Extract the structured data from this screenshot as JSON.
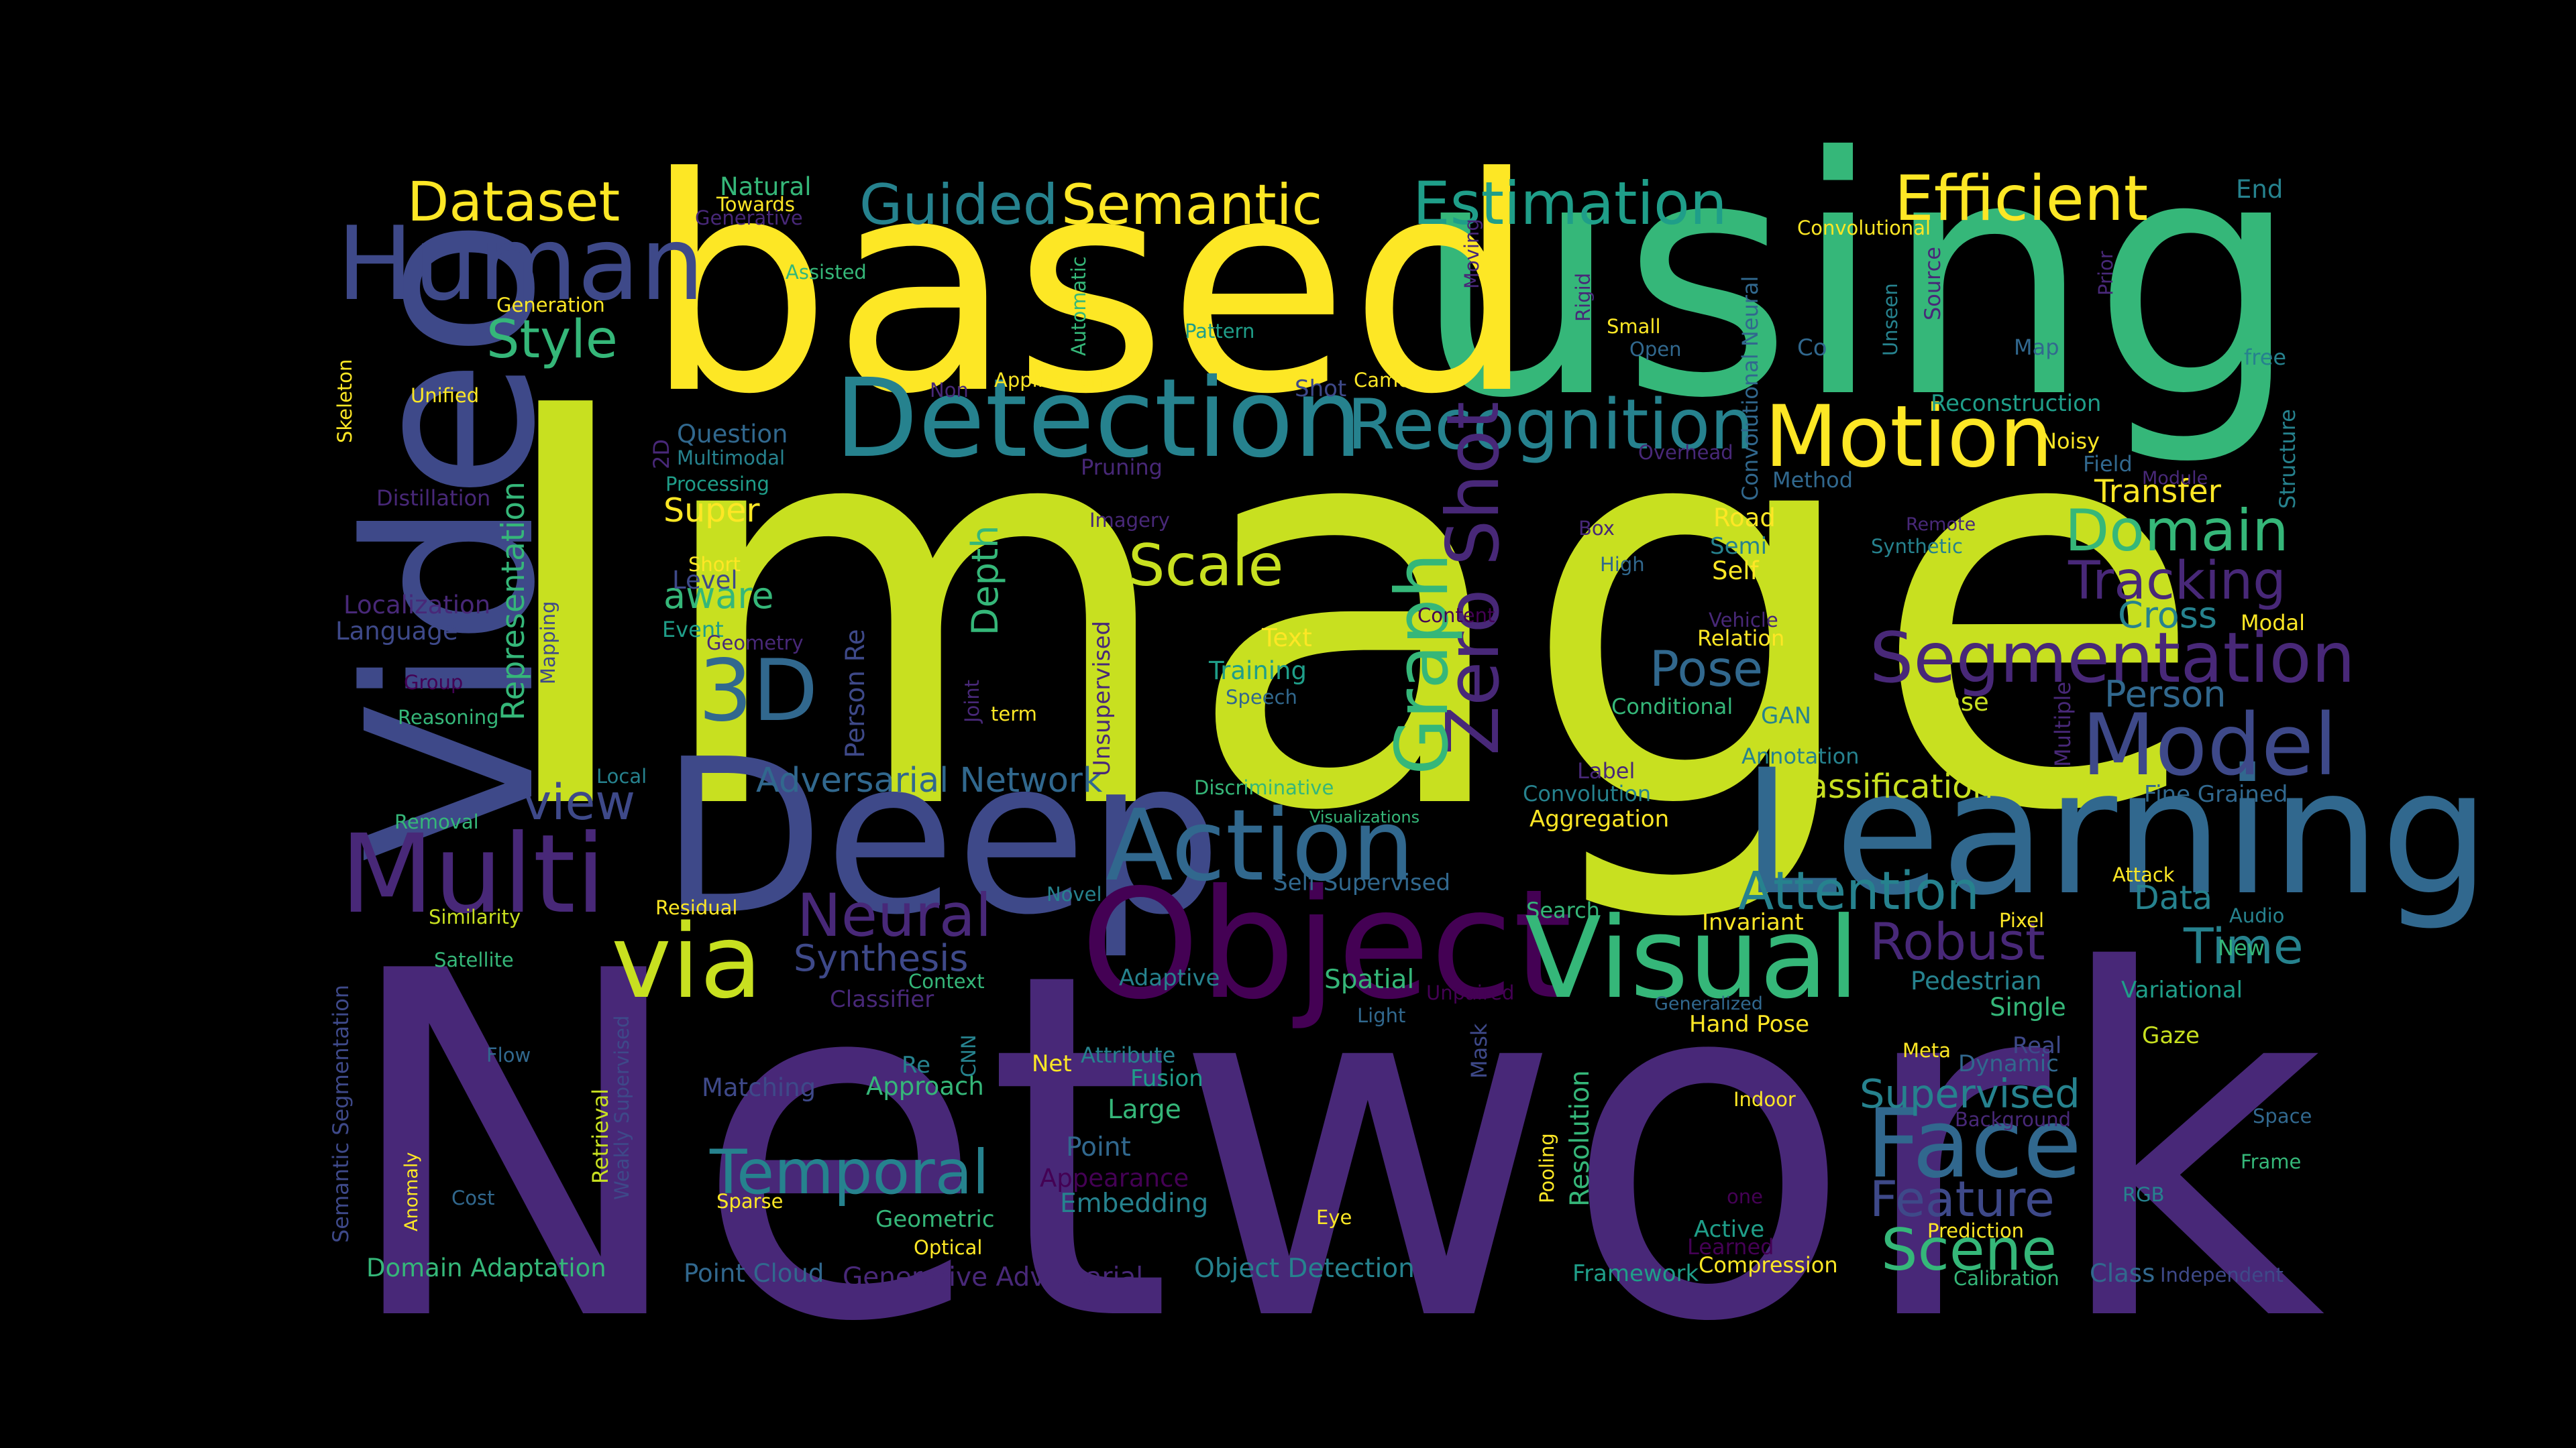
{
  "background_color": "#000000",
  "palette": {
    "dark_purple": "#440154",
    "indigo": "#482878",
    "slate_blue": "#3e4989",
    "steel_blue": "#31688e",
    "teal_blue": "#26828e",
    "teal": "#1f9e89",
    "green": "#35b779",
    "yellow_green": "#c8e020",
    "yellow": "#fde725"
  },
  "words": [
    {
      "text": "Network",
      "color": "#482878",
      "vertical": false
    },
    {
      "text": "Image",
      "color": "#c8e020",
      "vertical": false
    },
    {
      "text": "using",
      "color": "#35b779",
      "vertical": false
    },
    {
      "text": "based",
      "color": "#fde725",
      "vertical": false
    },
    {
      "text": "Deep",
      "color": "#3e4989",
      "vertical": false
    },
    {
      "text": "Video",
      "color": "#3e4989",
      "vertical": true
    },
    {
      "text": "Learning",
      "color": "#31688e",
      "vertical": false
    },
    {
      "text": "Object",
      "color": "#440154",
      "vertical": false
    },
    {
      "text": "Detection",
      "color": "#26828e",
      "vertical": false
    },
    {
      "text": "Visual",
      "color": "#35b779",
      "vertical": false
    },
    {
      "text": "Action",
      "color": "#31688e",
      "vertical": false
    },
    {
      "text": "Multi",
      "color": "#482878",
      "vertical": false
    },
    {
      "text": "Face",
      "color": "#31688e",
      "vertical": false
    },
    {
      "text": "Human",
      "color": "#3e4989",
      "vertical": false
    },
    {
      "text": "Recognition",
      "color": "#26828e",
      "vertical": false
    },
    {
      "text": "Motion",
      "color": "#fde725",
      "vertical": false
    },
    {
      "text": "via",
      "color": "#c8e020",
      "vertical": false
    },
    {
      "text": "Segmentation",
      "color": "#482878",
      "vertical": false
    },
    {
      "text": "Model",
      "color": "#3e4989",
      "vertical": false
    },
    {
      "text": "Efficient",
      "color": "#fde725",
      "vertical": false
    },
    {
      "text": "Estimation",
      "color": "#1f9e89",
      "vertical": false
    },
    {
      "text": "Semantic",
      "color": "#fde725",
      "vertical": false
    },
    {
      "text": "Guided",
      "color": "#26828e",
      "vertical": false
    },
    {
      "text": "Dataset",
      "color": "#fde725",
      "vertical": false
    },
    {
      "text": "3D",
      "color": "#31688e",
      "vertical": false
    },
    {
      "text": "Zero Shot",
      "color": "#482878",
      "vertical": true
    },
    {
      "text": "Graph",
      "color": "#35b779",
      "vertical": true
    },
    {
      "text": "Temporal",
      "color": "#26828e",
      "vertical": false
    },
    {
      "text": "Attention",
      "color": "#26828e",
      "vertical": false
    },
    {
      "text": "Domain",
      "color": "#35b779",
      "vertical": false
    },
    {
      "text": "Tracking",
      "color": "#482878",
      "vertical": false
    },
    {
      "text": "Scale",
      "color": "#c8e020",
      "vertical": false
    },
    {
      "text": "Neural",
      "color": "#482878",
      "vertical": false
    },
    {
      "text": "Robust",
      "color": "#482878",
      "vertical": false
    },
    {
      "text": "Time",
      "color": "#26828e",
      "vertical": false
    },
    {
      "text": "Pose",
      "color": "#31688e",
      "vertical": false
    },
    {
      "text": "Scene",
      "color": "#35b779",
      "vertical": false
    },
    {
      "text": "Feature",
      "color": "#3e4989",
      "vertical": false
    },
    {
      "text": "Style",
      "color": "#35b779",
      "vertical": false
    },
    {
      "text": "view",
      "color": "#3e4989",
      "vertical": false
    },
    {
      "text": "Supervised",
      "color": "#26828e",
      "vertical": false
    },
    {
      "text": "Adversarial Network",
      "color": "#31688e",
      "vertical": false
    },
    {
      "text": "Synthesis",
      "color": "#3e4989",
      "vertical": false
    },
    {
      "text": "Representation",
      "color": "#35b779",
      "vertical": true
    },
    {
      "text": "Depth",
      "color": "#35b779",
      "vertical": true
    },
    {
      "text": "Classification",
      "color": "#c8e020",
      "vertical": false
    },
    {
      "text": "Transfer",
      "color": "#fde725",
      "vertical": false
    },
    {
      "text": "Cross",
      "color": "#26828e",
      "vertical": false
    },
    {
      "text": "Person",
      "color": "#31688e",
      "vertical": false
    },
    {
      "text": "Data",
      "color": "#26828e",
      "vertical": false
    },
    {
      "text": "Super",
      "color": "#fde725",
      "vertical": false
    },
    {
      "text": "aware",
      "color": "#35b779",
      "vertical": false
    },
    {
      "text": "Embedding",
      "color": "#26828e",
      "vertical": false
    },
    {
      "text": "Point",
      "color": "#31688e",
      "vertical": false
    },
    {
      "text": "Large",
      "color": "#35b779",
      "vertical": false
    },
    {
      "text": "Approach",
      "color": "#35b779",
      "vertical": false
    },
    {
      "text": "Domain Adaptation",
      "color": "#35b779",
      "vertical": false
    },
    {
      "text": "Object Detection",
      "color": "#26828e",
      "vertical": false
    },
    {
      "text": "Generative Adversarial",
      "color": "#482878",
      "vertical": false
    },
    {
      "text": "Point Cloud",
      "color": "#31688e",
      "vertical": false
    },
    {
      "text": "Resolution",
      "color": "#35b779",
      "vertical": true
    },
    {
      "text": "Text",
      "color": "#fde725",
      "vertical": false
    },
    {
      "text": "Training",
      "color": "#1f9e89",
      "vertical": false
    },
    {
      "text": "Spatial",
      "color": "#35b779",
      "vertical": false
    },
    {
      "text": "Adaptive",
      "color": "#26828e",
      "vertical": false
    },
    {
      "text": "Framework",
      "color": "#1f9e89",
      "vertical": false
    },
    {
      "text": "Compression",
      "color": "#fde725",
      "vertical": false
    },
    {
      "text": "Pedestrian",
      "color": "#26828e",
      "vertical": false
    },
    {
      "text": "Single",
      "color": "#35b779",
      "vertical": false
    },
    {
      "text": "Variational",
      "color": "#1f9e89",
      "vertical": false
    },
    {
      "text": "Gaze",
      "color": "#c8e020",
      "vertical": false
    },
    {
      "text": "Dynamic",
      "color": "#31688e",
      "vertical": false
    },
    {
      "text": "Hand Pose",
      "color": "#fde725",
      "vertical": false
    },
    {
      "text": "Matching",
      "color": "#3e4989",
      "vertical": false
    },
    {
      "text": "Geometric",
      "color": "#35b779",
      "vertical": false
    },
    {
      "text": "Appearance",
      "color": "#440154",
      "vertical": false
    },
    {
      "text": "Localization",
      "color": "#482878",
      "vertical": false
    },
    {
      "text": "Language",
      "color": "#3e4989",
      "vertical": false
    },
    {
      "text": "Question",
      "color": "#31688e",
      "vertical": false
    },
    {
      "text": "Level",
      "color": "#3e4989",
      "vertical": false
    },
    {
      "text": "Event",
      "color": "#1f9e89",
      "vertical": false
    },
    {
      "text": "Reasoning",
      "color": "#35b779",
      "vertical": false
    },
    {
      "text": "Conditional",
      "color": "#35b779",
      "vertical": false
    },
    {
      "text": "GAN",
      "color": "#26828e",
      "vertical": false
    },
    {
      "text": "Dense",
      "color": "#c8e020",
      "vertical": false
    },
    {
      "text": "Road",
      "color": "#fde725",
      "vertical": false
    },
    {
      "text": "Semi",
      "color": "#26828e",
      "vertical": false
    },
    {
      "text": "Self",
      "color": "#fde725",
      "vertical": false
    },
    {
      "text": "Relation",
      "color": "#fde725",
      "vertical": false
    },
    {
      "text": "Aggregation",
      "color": "#fde725",
      "vertical": false
    },
    {
      "text": "Convolution",
      "color": "#26828e",
      "vertical": false
    },
    {
      "text": "Label",
      "color": "#482878",
      "vertical": false
    },
    {
      "text": "Discriminative",
      "color": "#35b779",
      "vertical": false
    },
    {
      "text": "Self Supervised",
      "color": "#31688e",
      "vertical": false
    },
    {
      "text": "Novel",
      "color": "#26828e",
      "vertical": false
    },
    {
      "text": "Search",
      "color": "#35b779",
      "vertical": false
    },
    {
      "text": "Invariant",
      "color": "#fde725",
      "vertical": false
    },
    {
      "text": "Pixel",
      "color": "#fde725",
      "vertical": false
    },
    {
      "text": "Attack",
      "color": "#fde725",
      "vertical": false
    },
    {
      "text": "New",
      "color": "#35b779",
      "vertical": false
    },
    {
      "text": "Audio",
      "color": "#26828e",
      "vertical": false
    },
    {
      "text": "Fine Grained",
      "color": "#31688e",
      "vertical": false
    },
    {
      "text": "Annotation",
      "color": "#26828e",
      "vertical": false
    },
    {
      "text": "Vehicle",
      "color": "#482878",
      "vertical": false
    },
    {
      "text": "Modal",
      "color": "#fde725",
      "vertical": false
    },
    {
      "text": "Multiple",
      "color": "#482878",
      "vertical": true
    },
    {
      "text": "Synthetic",
      "color": "#26828e",
      "vertical": false
    },
    {
      "text": "Remote",
      "color": "#482878",
      "vertical": false
    },
    {
      "text": "Method",
      "color": "#31688e",
      "vertical": false
    },
    {
      "text": "Field",
      "color": "#31688e",
      "vertical": false
    },
    {
      "text": "Module",
      "color": "#482878",
      "vertical": false
    },
    {
      "text": "Noisy",
      "color": "#fde725",
      "vertical": false
    },
    {
      "text": "Reconstruction",
      "color": "#1f9e89",
      "vertical": false
    },
    {
      "text": "Structure",
      "color": "#26828e",
      "vertical": true
    },
    {
      "text": "free",
      "color": "#26828e",
      "vertical": false
    },
    {
      "text": "Map",
      "color": "#31688e",
      "vertical": false
    },
    {
      "text": "Prior",
      "color": "#482878",
      "vertical": true
    },
    {
      "text": "Source",
      "color": "#482878",
      "vertical": true
    },
    {
      "text": "Unseen",
      "color": "#26828e",
      "vertical": true
    },
    {
      "text": "Convolutional Neural",
      "color": "#31688e",
      "vertical": true
    },
    {
      "text": "Convolutional",
      "color": "#fde725",
      "vertical": false
    },
    {
      "text": "End",
      "color": "#26828e",
      "vertical": false
    },
    {
      "text": "Co",
      "color": "#31688e",
      "vertical": false
    },
    {
      "text": "Small",
      "color": "#fde725",
      "vertical": false
    },
    {
      "text": "Open",
      "color": "#31688e",
      "vertical": false
    },
    {
      "text": "Rigid",
      "color": "#482878",
      "vertical": true
    },
    {
      "text": "Moving",
      "color": "#482878",
      "vertical": true
    },
    {
      "text": "Camera",
      "color": "#fde725",
      "vertical": false
    },
    {
      "text": "Overhead",
      "color": "#482878",
      "vertical": false
    },
    {
      "text": "Box",
      "color": "#482878",
      "vertical": false
    },
    {
      "text": "High",
      "color": "#31688e",
      "vertical": false
    },
    {
      "text": "Content",
      "color": "#440154",
      "vertical": false
    },
    {
      "text": "Speech",
      "color": "#31688e",
      "vertical": false
    },
    {
      "text": "Imagery",
      "color": "#482878",
      "vertical": false
    },
    {
      "text": "Pruning",
      "color": "#482878",
      "vertical": false
    },
    {
      "text": "Shot",
      "color": "#3e4989",
      "vertical": false
    },
    {
      "text": "Application",
      "color": "#fde725",
      "vertical": false
    },
    {
      "text": "Pattern",
      "color": "#1f9e89",
      "vertical": false
    },
    {
      "text": "Automatic",
      "color": "#35b779",
      "vertical": true
    },
    {
      "text": "Non",
      "color": "#482878",
      "vertical": false
    },
    {
      "text": "Assisted",
      "color": "#35b779",
      "vertical": false
    },
    {
      "text": "Natural",
      "color": "#35b779",
      "vertical": false
    },
    {
      "text": "Towards",
      "color": "#fde725",
      "vertical": false
    },
    {
      "text": "Generative",
      "color": "#482878",
      "vertical": false
    },
    {
      "text": "Generation",
      "color": "#fde725",
      "vertical": false
    },
    {
      "text": "Unified",
      "color": "#fde725",
      "vertical": false
    },
    {
      "text": "Skeleton",
      "color": "#fde725",
      "vertical": true
    },
    {
      "text": "Distillation",
      "color": "#482878",
      "vertical": false
    },
    {
      "text": "Multimodal",
      "color": "#26828e",
      "vertical": false
    },
    {
      "text": "Processing",
      "color": "#1f9e89",
      "vertical": false
    },
    {
      "text": "2D",
      "color": "#482878",
      "vertical": true
    },
    {
      "text": "Short",
      "color": "#fde725",
      "vertical": false
    },
    {
      "text": "Geometry",
      "color": "#482878",
      "vertical": false
    },
    {
      "text": "Mapping",
      "color": "#3e4989",
      "vertical": true
    },
    {
      "text": "Group",
      "color": "#440154",
      "vertical": false
    },
    {
      "text": "Person Re",
      "color": "#3e4989",
      "vertical": true
    },
    {
      "text": "Joint",
      "color": "#482878",
      "vertical": true
    },
    {
      "text": "term",
      "color": "#fde725",
      "vertical": false
    },
    {
      "text": "Unsupervised",
      "color": "#482878",
      "vertical": true
    },
    {
      "text": "Local",
      "color": "#26828e",
      "vertical": false
    },
    {
      "text": "Removal",
      "color": "#35b779",
      "vertical": false
    },
    {
      "text": "Similarity",
      "color": "#c8e020",
      "vertical": false
    },
    {
      "text": "Residual",
      "color": "#fde725",
      "vertical": false
    },
    {
      "text": "Satellite",
      "color": "#35b779",
      "vertical": false
    },
    {
      "text": "Context",
      "color": "#35b779",
      "vertical": false
    },
    {
      "text": "Classifier",
      "color": "#482878",
      "vertical": false
    },
    {
      "text": "Semantic Segmentation",
      "color": "#3e4989",
      "vertical": true
    },
    {
      "text": "Flow",
      "color": "#31688e",
      "vertical": false
    },
    {
      "text": "Weakly Supervised",
      "color": "#3e4989",
      "vertical": true
    },
    {
      "text": "Retrieval",
      "color": "#c8e020",
      "vertical": true
    },
    {
      "text": "Anomaly",
      "color": "#fde725",
      "vertical": true
    },
    {
      "text": "Cost",
      "color": "#31688e",
      "vertical": false
    },
    {
      "text": "Sparse",
      "color": "#fde725",
      "vertical": false
    },
    {
      "text": "Optical",
      "color": "#fde725",
      "vertical": false
    },
    {
      "text": "Re",
      "color": "#26828e",
      "vertical": false
    },
    {
      "text": "CNN",
      "color": "#26828e",
      "vertical": true
    },
    {
      "text": "Net",
      "color": "#fde725",
      "vertical": false
    },
    {
      "text": "Attribute",
      "color": "#26828e",
      "vertical": false
    },
    {
      "text": "Fusion",
      "color": "#1f9e89",
      "vertical": false
    },
    {
      "text": "Light",
      "color": "#31688e",
      "vertical": false
    },
    {
      "text": "Unpaired",
      "color": "#440154",
      "vertical": false
    },
    {
      "text": "Mask",
      "color": "#3e4989",
      "vertical": true
    },
    {
      "text": "Pooling",
      "color": "#fde725",
      "vertical": true
    },
    {
      "text": "Eye",
      "color": "#fde725",
      "vertical": false
    },
    {
      "text": "Visualizations",
      "color": "#35b779",
      "vertical": false
    },
    {
      "text": "Generalized",
      "color": "#31688e",
      "vertical": false
    },
    {
      "text": "Indoor",
      "color": "#fde725",
      "vertical": false
    },
    {
      "text": "one",
      "color": "#440154",
      "vertical": false
    },
    {
      "text": "Active",
      "color": "#1f9e89",
      "vertical": false
    },
    {
      "text": "Learned",
      "color": "#440154",
      "vertical": false
    },
    {
      "text": "Prediction",
      "color": "#fde725",
      "vertical": false
    },
    {
      "text": "Calibration",
      "color": "#35b779",
      "vertical": false
    },
    {
      "text": "Class",
      "color": "#31688e",
      "vertical": false
    },
    {
      "text": "Independent",
      "color": "#3e4989",
      "vertical": false
    },
    {
      "text": "Meta",
      "color": "#fde725",
      "vertical": false
    },
    {
      "text": "Real",
      "color": "#3e4989",
      "vertical": false
    },
    {
      "text": "Background",
      "color": "#482878",
      "vertical": false
    },
    {
      "text": "Space",
      "color": "#31688e",
      "vertical": false
    },
    {
      "text": "Frame",
      "color": "#35b779",
      "vertical": false
    },
    {
      "text": "RGB",
      "color": "#26828e",
      "vertical": false
    }
  ]
}
